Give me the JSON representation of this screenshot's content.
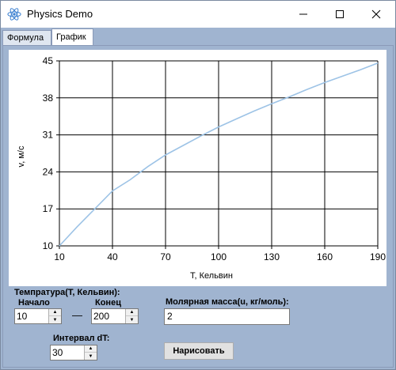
{
  "window": {
    "title": "Physics Demo",
    "minimize_glyph": "—",
    "maximize_glyph": "☐",
    "close_glyph": "✕"
  },
  "tabs": [
    {
      "label": "Формула",
      "active": false
    },
    {
      "label": "График",
      "active": true
    }
  ],
  "chart_data": {
    "type": "line",
    "xlabel": "T, Кельвин",
    "ylabel": "v, м/с",
    "xlim": [
      10,
      190
    ],
    "ylim": [
      10,
      45
    ],
    "x_ticks": [
      10,
      40,
      70,
      100,
      130,
      160,
      190
    ],
    "y_ticks": [
      10,
      17,
      24,
      31,
      38,
      45
    ],
    "grid": true,
    "line_color": "#9dc3e6",
    "series": [
      {
        "x": [
          10,
          20,
          30,
          40,
          50,
          60,
          70,
          80,
          90,
          100,
          110,
          120,
          130,
          140,
          150,
          160,
          170,
          180,
          190
        ],
        "y": [
          10.0,
          13.6,
          17.0,
          20.4,
          22.5,
          25.0,
          27.2,
          29.0,
          30.8,
          32.5,
          34.0,
          35.5,
          36.9,
          38.2,
          39.6,
          40.9,
          42.1,
          43.3,
          44.6
        ]
      }
    ]
  },
  "controls": {
    "temp_group_label": "Темпратура(T, Кельвин):",
    "start_label": "Начало",
    "end_label": "Конец",
    "start_value": "10",
    "end_value": "200",
    "dash": "—",
    "molar_label": "Молярная масса(u, кг/моль):",
    "molar_value": "2",
    "interval_label": "Интервал dT:",
    "interval_value": "30",
    "draw_button": "Нарисовать"
  }
}
